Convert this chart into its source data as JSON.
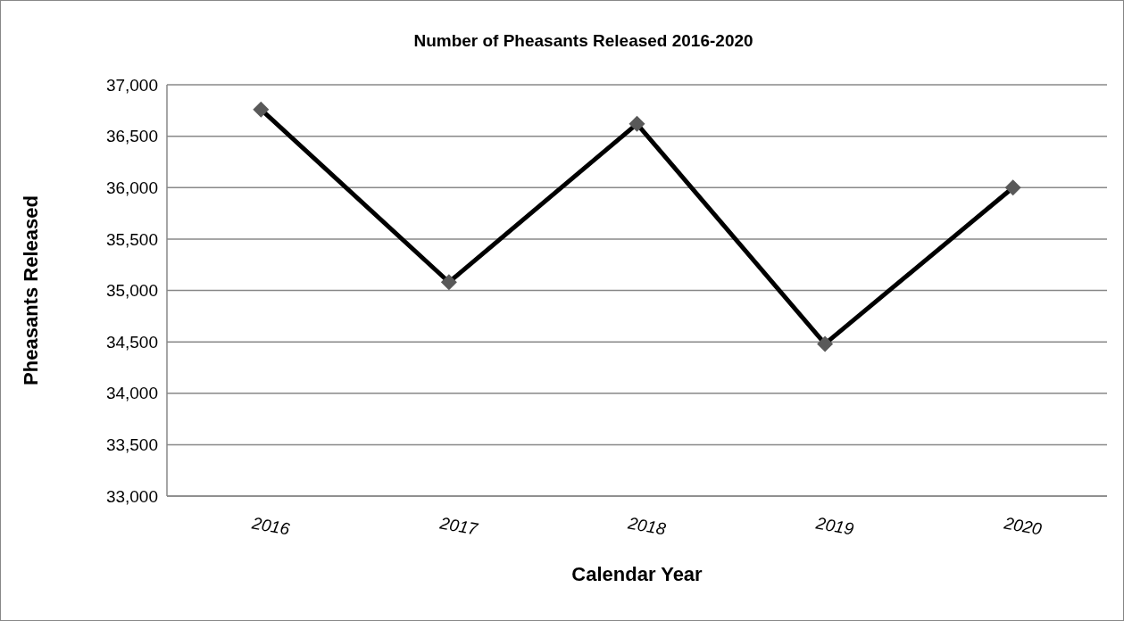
{
  "chart_data": {
    "type": "line",
    "title": "Number of Pheasants Released 2016-2020",
    "xlabel": "Calendar Year",
    "ylabel": "Pheasants Released",
    "categories": [
      "2016",
      "2017",
      "2018",
      "2019",
      "2020"
    ],
    "series": [
      {
        "color": "#000000",
        "values": [
          36760,
          35080,
          36620,
          34480,
          36000
        ]
      }
    ],
    "ylim": [
      33000,
      37000
    ],
    "yticks": [
      {
        "value": 33000,
        "label": "33,000"
      },
      {
        "value": 33500,
        "label": "33,500"
      },
      {
        "value": 34000,
        "label": "34,000"
      },
      {
        "value": 34500,
        "label": "34,500"
      },
      {
        "value": 35000,
        "label": "35,000"
      },
      {
        "value": 35500,
        "label": "35,500"
      },
      {
        "value": 36000,
        "label": "36,000"
      },
      {
        "value": 36500,
        "label": "36,500"
      },
      {
        "value": 37000,
        "label": "37,000"
      }
    ],
    "grid": "y",
    "marker": "diamond",
    "line_style": "solid"
  }
}
